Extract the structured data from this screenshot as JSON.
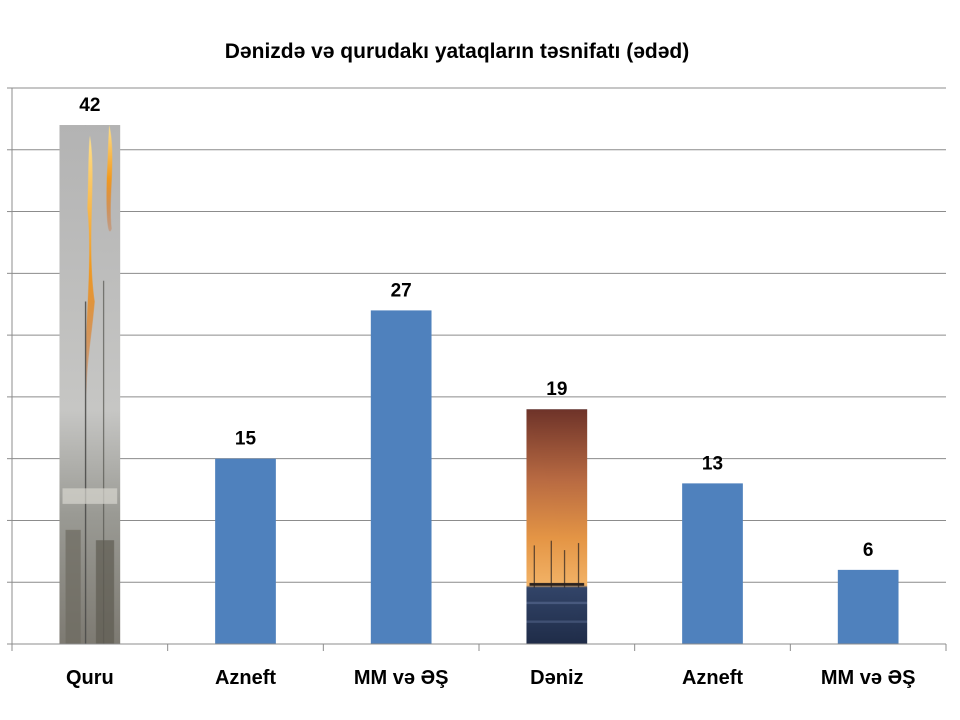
{
  "chart_data": {
    "type": "bar",
    "title": "Dənizdə və qurudakı yataqların təsnifatı (ədəd)",
    "xlabel": "",
    "ylabel": "",
    "categories": [
      "Quru",
      "Azneft",
      "MM və ƏŞ",
      "Dəniz",
      "Azneft",
      "MM və ƏŞ"
    ],
    "values": [
      42,
      15,
      27,
      19,
      13,
      6
    ],
    "ylim": [
      0,
      45
    ],
    "y_major_step": 5,
    "y_tick_labels_shown": false,
    "grid": true,
    "legend": "none",
    "data_labels": true,
    "colors": {
      "bar": "#4f81bd",
      "grid": "#8c8c8c",
      "text": "#000000"
    },
    "bar_fills": [
      "photo-gas-flare",
      "solid",
      "solid",
      "photo-sea-sunset",
      "solid",
      "solid"
    ]
  }
}
